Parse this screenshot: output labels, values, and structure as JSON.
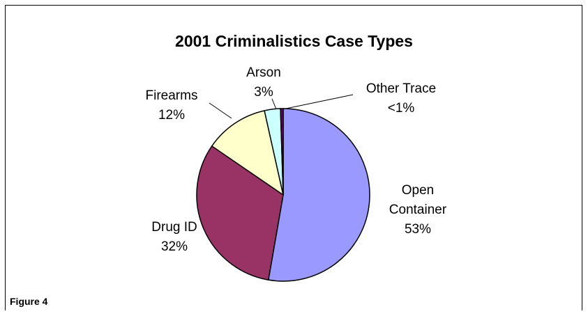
{
  "caption": "Figure 4",
  "chart_data": {
    "type": "pie",
    "title": "2001 Criminalistics Case Types",
    "slices": [
      {
        "name": "Open Container",
        "value": 53,
        "label": "53%",
        "color": "#9999ff"
      },
      {
        "name": "Drug ID",
        "value": 32,
        "label": "32%",
        "color": "#993366"
      },
      {
        "name": "Firearms",
        "value": 12,
        "label": "12%",
        "color": "#ffffcc"
      },
      {
        "name": "Arson",
        "value": 3,
        "label": "3%",
        "color": "#ccffff"
      },
      {
        "name": "Other Trace",
        "value": 0.5,
        "label": "<1%",
        "color": "#660066"
      }
    ],
    "start": "12 o'clock, clockwise"
  },
  "label_text": {
    "open_line1": "Open",
    "open_line2": "Container",
    "drug": "Drug ID",
    "firearms": "Firearms",
    "arson": "Arson",
    "other": "Other Trace"
  }
}
